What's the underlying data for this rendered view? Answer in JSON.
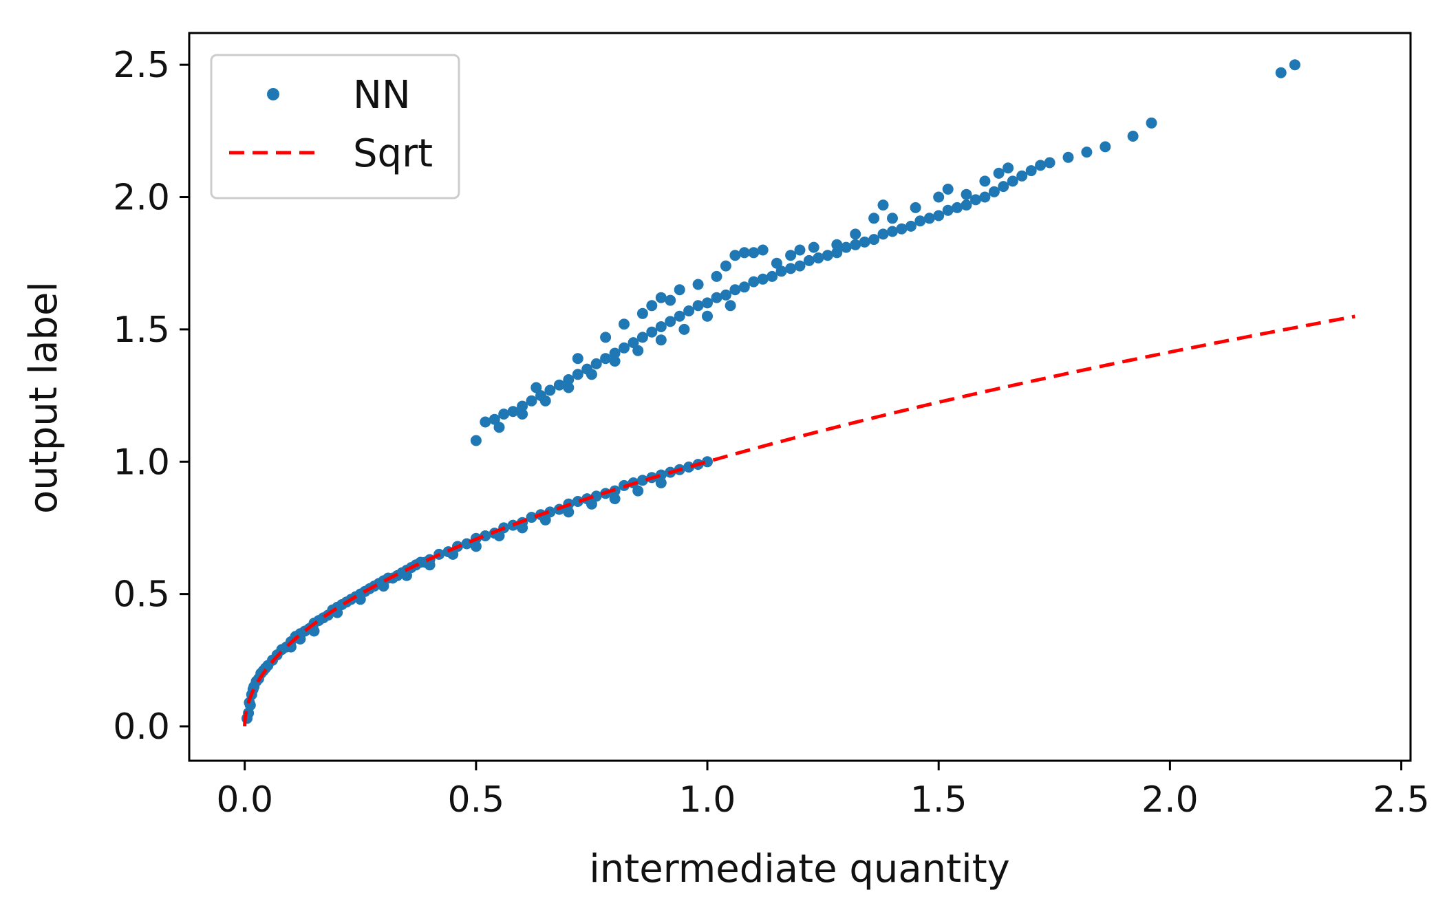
{
  "chart_data": {
    "type": "scatter",
    "title": "",
    "xlabel": "intermediate quantity",
    "ylabel": "output label",
    "xlim": [
      -0.12,
      2.52
    ],
    "ylim": [
      -0.13,
      2.62
    ],
    "xticks": [
      "0.0",
      "0.5",
      "1.0",
      "1.5",
      "2.0",
      "2.5"
    ],
    "yticks": [
      "0.0",
      "0.5",
      "1.0",
      "1.5",
      "2.0",
      "2.5"
    ],
    "grid": false,
    "legend": {
      "placement": "top-left",
      "entries": [
        "NN",
        "Sqrt"
      ]
    },
    "series": [
      {
        "name": "NN",
        "kind": "scatter",
        "color": "#1f77b4",
        "points": [
          [
            0.005,
            0.03
          ],
          [
            0.008,
            0.05
          ],
          [
            0.01,
            0.09
          ],
          [
            0.012,
            0.08
          ],
          [
            0.015,
            0.12
          ],
          [
            0.018,
            0.14
          ],
          [
            0.02,
            0.15
          ],
          [
            0.025,
            0.17
          ],
          [
            0.03,
            0.18
          ],
          [
            0.035,
            0.2
          ],
          [
            0.04,
            0.21
          ],
          [
            0.045,
            0.22
          ],
          [
            0.05,
            0.23
          ],
          [
            0.06,
            0.25
          ],
          [
            0.07,
            0.27
          ],
          [
            0.08,
            0.29
          ],
          [
            0.09,
            0.3
          ],
          [
            0.1,
            0.32
          ],
          [
            0.11,
            0.34
          ],
          [
            0.12,
            0.35
          ],
          [
            0.13,
            0.36
          ],
          [
            0.14,
            0.37
          ],
          [
            0.15,
            0.39
          ],
          [
            0.16,
            0.4
          ],
          [
            0.17,
            0.41
          ],
          [
            0.18,
            0.42
          ],
          [
            0.19,
            0.44
          ],
          [
            0.2,
            0.45
          ],
          [
            0.21,
            0.46
          ],
          [
            0.22,
            0.47
          ],
          [
            0.23,
            0.48
          ],
          [
            0.24,
            0.49
          ],
          [
            0.25,
            0.5
          ],
          [
            0.26,
            0.51
          ],
          [
            0.27,
            0.52
          ],
          [
            0.28,
            0.53
          ],
          [
            0.29,
            0.54
          ],
          [
            0.3,
            0.55
          ],
          [
            0.31,
            0.56
          ],
          [
            0.32,
            0.56
          ],
          [
            0.33,
            0.57
          ],
          [
            0.34,
            0.58
          ],
          [
            0.35,
            0.59
          ],
          [
            0.36,
            0.6
          ],
          [
            0.37,
            0.61
          ],
          [
            0.38,
            0.62
          ],
          [
            0.39,
            0.62
          ],
          [
            0.4,
            0.63
          ],
          [
            0.42,
            0.65
          ],
          [
            0.44,
            0.66
          ],
          [
            0.46,
            0.68
          ],
          [
            0.48,
            0.69
          ],
          [
            0.5,
            0.71
          ],
          [
            0.52,
            0.72
          ],
          [
            0.54,
            0.73
          ],
          [
            0.56,
            0.75
          ],
          [
            0.58,
            0.76
          ],
          [
            0.6,
            0.77
          ],
          [
            0.62,
            0.79
          ],
          [
            0.64,
            0.8
          ],
          [
            0.66,
            0.81
          ],
          [
            0.68,
            0.82
          ],
          [
            0.7,
            0.84
          ],
          [
            0.72,
            0.85
          ],
          [
            0.74,
            0.86
          ],
          [
            0.76,
            0.87
          ],
          [
            0.78,
            0.88
          ],
          [
            0.8,
            0.89
          ],
          [
            0.82,
            0.91
          ],
          [
            0.84,
            0.92
          ],
          [
            0.86,
            0.93
          ],
          [
            0.88,
            0.94
          ],
          [
            0.9,
            0.95
          ],
          [
            0.92,
            0.96
          ],
          [
            0.94,
            0.97
          ],
          [
            0.96,
            0.98
          ],
          [
            0.98,
            0.99
          ],
          [
            1.0,
            1.0
          ],
          [
            0.1,
            0.3
          ],
          [
            0.12,
            0.33
          ],
          [
            0.15,
            0.36
          ],
          [
            0.2,
            0.43
          ],
          [
            0.25,
            0.48
          ],
          [
            0.3,
            0.53
          ],
          [
            0.35,
            0.57
          ],
          [
            0.4,
            0.61
          ],
          [
            0.45,
            0.65
          ],
          [
            0.5,
            0.68
          ],
          [
            0.55,
            0.72
          ],
          [
            0.6,
            0.75
          ],
          [
            0.65,
            0.78
          ],
          [
            0.7,
            0.81
          ],
          [
            0.75,
            0.84
          ],
          [
            0.8,
            0.86
          ],
          [
            0.85,
            0.89
          ],
          [
            0.9,
            0.92
          ],
          [
            0.52,
            1.15
          ],
          [
            0.54,
            1.16
          ],
          [
            0.56,
            1.18
          ],
          [
            0.58,
            1.19
          ],
          [
            0.6,
            1.21
          ],
          [
            0.62,
            1.23
          ],
          [
            0.64,
            1.25
          ],
          [
            0.66,
            1.27
          ],
          [
            0.68,
            1.29
          ],
          [
            0.7,
            1.31
          ],
          [
            0.72,
            1.33
          ],
          [
            0.74,
            1.35
          ],
          [
            0.76,
            1.37
          ],
          [
            0.78,
            1.39
          ],
          [
            0.8,
            1.41
          ],
          [
            0.82,
            1.43
          ],
          [
            0.84,
            1.45
          ],
          [
            0.86,
            1.47
          ],
          [
            0.88,
            1.49
          ],
          [
            0.9,
            1.51
          ],
          [
            0.92,
            1.53
          ],
          [
            0.94,
            1.55
          ],
          [
            0.96,
            1.57
          ],
          [
            0.98,
            1.59
          ],
          [
            1.0,
            1.6
          ],
          [
            1.02,
            1.62
          ],
          [
            1.04,
            1.63
          ],
          [
            1.06,
            1.65
          ],
          [
            1.08,
            1.66
          ],
          [
            1.1,
            1.68
          ],
          [
            1.12,
            1.69
          ],
          [
            1.14,
            1.7
          ],
          [
            1.16,
            1.72
          ],
          [
            1.18,
            1.73
          ],
          [
            1.2,
            1.74
          ],
          [
            1.22,
            1.76
          ],
          [
            1.24,
            1.77
          ],
          [
            1.26,
            1.78
          ],
          [
            1.28,
            1.79
          ],
          [
            1.3,
            1.81
          ],
          [
            1.32,
            1.82
          ],
          [
            1.34,
            1.83
          ],
          [
            1.36,
            1.84
          ],
          [
            1.38,
            1.86
          ],
          [
            1.4,
            1.87
          ],
          [
            1.42,
            1.88
          ],
          [
            1.44,
            1.89
          ],
          [
            1.46,
            1.91
          ],
          [
            1.48,
            1.92
          ],
          [
            1.5,
            1.93
          ],
          [
            1.52,
            1.95
          ],
          [
            1.54,
            1.96
          ],
          [
            1.56,
            1.97
          ],
          [
            1.58,
            1.99
          ],
          [
            1.6,
            2.0
          ],
          [
            1.62,
            2.02
          ],
          [
            1.64,
            2.04
          ],
          [
            1.66,
            2.06
          ],
          [
            1.68,
            2.08
          ],
          [
            0.5,
            1.08
          ],
          [
            0.55,
            1.13
          ],
          [
            0.6,
            1.18
          ],
          [
            0.65,
            1.23
          ],
          [
            0.7,
            1.28
          ],
          [
            0.75,
            1.33
          ],
          [
            0.8,
            1.38
          ],
          [
            0.85,
            1.42
          ],
          [
            0.9,
            1.46
          ],
          [
            0.95,
            1.5
          ],
          [
            1.0,
            1.55
          ],
          [
            1.05,
            1.59
          ],
          [
            0.63,
            1.28
          ],
          [
            0.72,
            1.39
          ],
          [
            0.78,
            1.47
          ],
          [
            0.82,
            1.52
          ],
          [
            0.86,
            1.56
          ],
          [
            0.88,
            1.59
          ],
          [
            0.9,
            1.62
          ],
          [
            0.92,
            1.61
          ],
          [
            0.94,
            1.65
          ],
          [
            0.98,
            1.67
          ],
          [
            1.02,
            1.7
          ],
          [
            1.04,
            1.74
          ],
          [
            1.06,
            1.78
          ],
          [
            1.08,
            1.79
          ],
          [
            1.1,
            1.79
          ],
          [
            1.12,
            1.8
          ],
          [
            1.15,
            1.75
          ],
          [
            1.18,
            1.78
          ],
          [
            1.2,
            1.8
          ],
          [
            1.23,
            1.81
          ],
          [
            1.28,
            1.82
          ],
          [
            1.32,
            1.86
          ],
          [
            1.36,
            1.92
          ],
          [
            1.38,
            1.97
          ],
          [
            1.4,
            1.92
          ],
          [
            1.45,
            1.96
          ],
          [
            1.5,
            2.0
          ],
          [
            1.52,
            2.03
          ],
          [
            1.56,
            2.01
          ],
          [
            1.6,
            2.06
          ],
          [
            1.63,
            2.09
          ],
          [
            1.65,
            2.11
          ],
          [
            1.7,
            2.1
          ],
          [
            1.72,
            2.12
          ],
          [
            1.74,
            2.13
          ],
          [
            1.78,
            2.15
          ],
          [
            1.82,
            2.17
          ],
          [
            1.86,
            2.19
          ],
          [
            1.92,
            2.23
          ],
          [
            1.96,
            2.28
          ],
          [
            2.24,
            2.47
          ],
          [
            2.27,
            2.5
          ]
        ]
      },
      {
        "name": "Sqrt",
        "kind": "line",
        "style": "dashed",
        "color": "#ff0000",
        "function": "y = sqrt(x)",
        "x_range": [
          0.0,
          2.4
        ]
      }
    ]
  }
}
